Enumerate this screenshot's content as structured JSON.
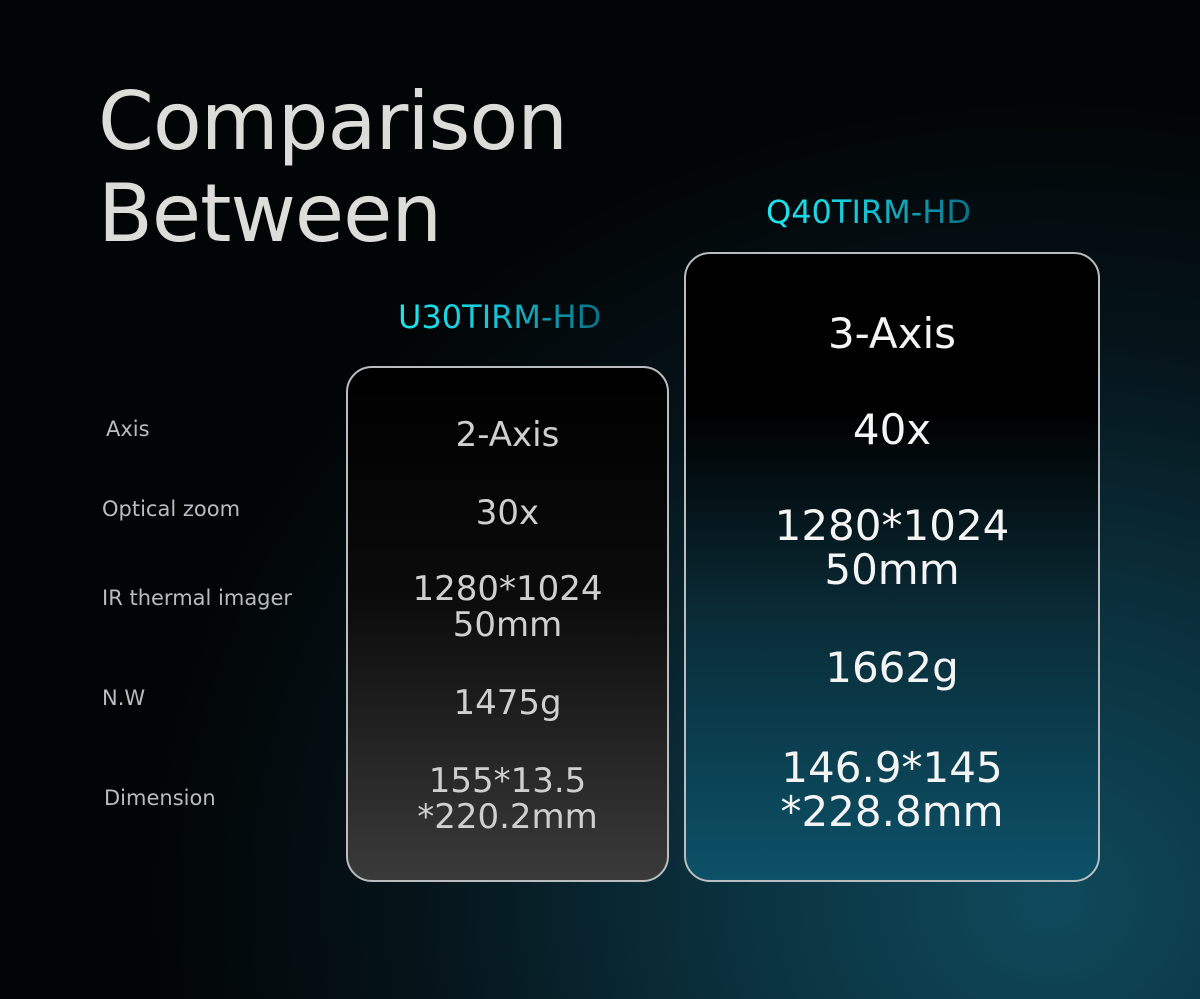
{
  "title": {
    "line1": "Comparison",
    "line2": "Between"
  },
  "labels": [
    "Axis",
    "Optical zoom",
    "IR thermal imager",
    "N.W",
    "Dimension"
  ],
  "products": [
    {
      "name": "U30TIRM-HD",
      "values": [
        [
          "2-Axis"
        ],
        [
          "30x"
        ],
        [
          "1280*1024",
          "50mm"
        ],
        [
          "1475g"
        ],
        [
          "155*13.5",
          "*220.2mm"
        ]
      ]
    },
    {
      "name": "Q40TIRM-HD",
      "values": [
        [
          "3-Axis"
        ],
        [
          "40x"
        ],
        [
          "1280*1024",
          "50mm"
        ],
        [
          "1662g"
        ],
        [
          "146.9*145",
          "*228.8mm"
        ]
      ]
    }
  ],
  "colors": {
    "accent": "#1ee6f0",
    "accent_dark": "#0a6f86"
  }
}
